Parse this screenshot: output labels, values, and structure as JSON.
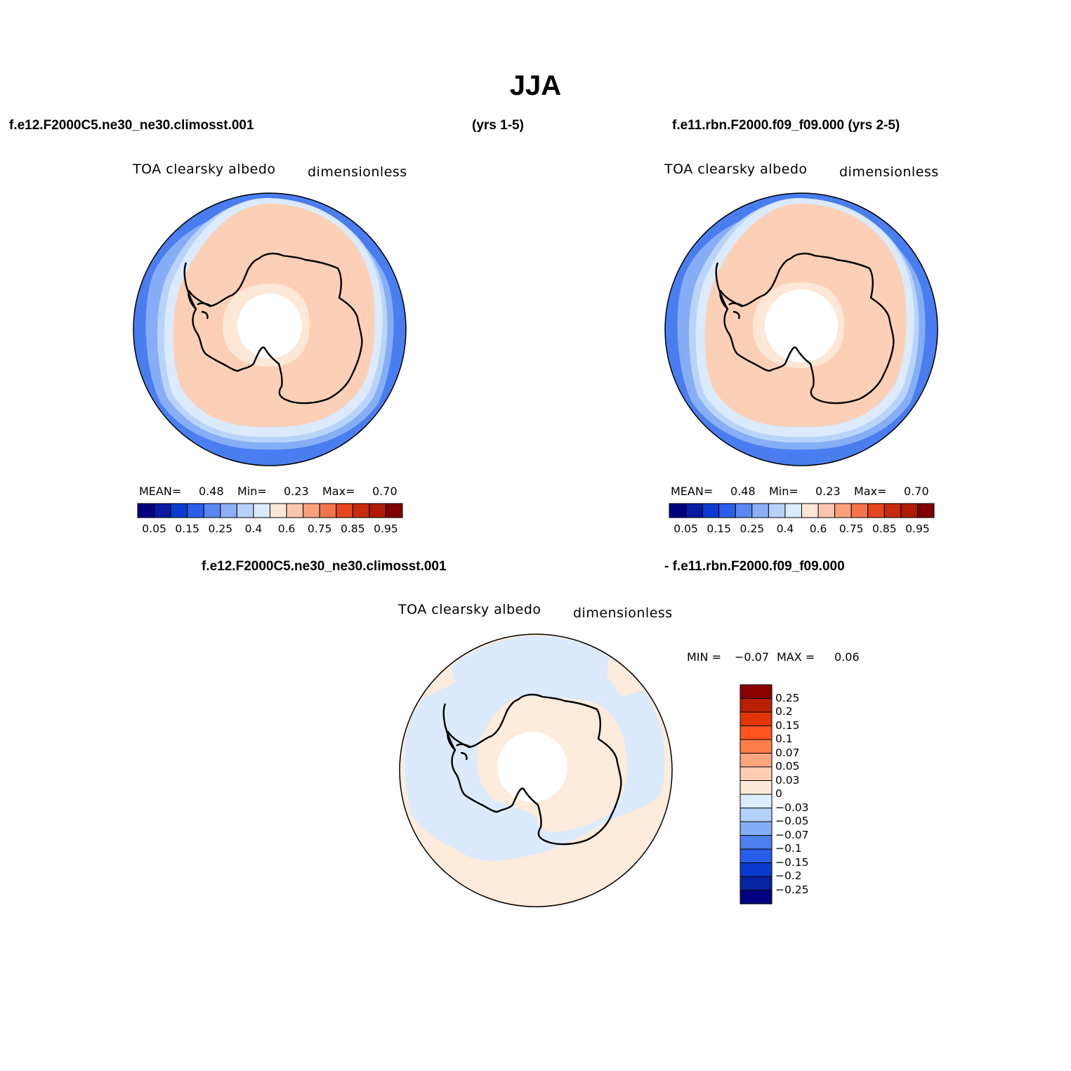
{
  "figure": {
    "title": "JJA",
    "panel_top_left": {
      "case_label": "f.e12.F2000C5.ne30_ne30.climosst.001",
      "years_label": "(yrs 1-5)",
      "variable": "TOA clearsky albedo",
      "units": "dimensionless",
      "mean_label": "MEAN=",
      "mean_value": "0.48",
      "min_label": "Min=",
      "min_value": "0.23",
      "max_label": "Max=",
      "max_value": "0.70"
    },
    "panel_top_right": {
      "case_label": "f.e11.rbn.F2000.f09_f09.000 (yrs 2-5)",
      "variable": "TOA clearsky albedo",
      "units": "dimensionless",
      "mean_label": "MEAN=",
      "mean_value": "0.48",
      "min_label": "Min=",
      "min_value": "0.23",
      "max_label": "Max=",
      "max_value": "0.70"
    },
    "panel_bottom": {
      "case_label_left": "f.e12.F2000C5.ne30_ne30.climosst.001",
      "case_label_right": "- f.e11.rbn.F2000.f09_f09.000",
      "variable": "TOA clearsky albedo",
      "units": "dimensionless",
      "min_label": "MIN =",
      "min_value": "−0.07",
      "max_label": "MAX =",
      "max_value": "0.06"
    },
    "colorbar_horizontal": {
      "tick_labels": [
        "0.05",
        "0.15",
        "0.25",
        "0.4",
        "0.6",
        "0.75",
        "0.85",
        "0.95"
      ],
      "colors": [
        "#00007f",
        "#0a1aa3",
        "#0b3ad0",
        "#2a5de8",
        "#5a88f2",
        "#8caff6",
        "#b8d1f9",
        "#d9ebfc",
        "#fde8d8",
        "#fcc6ae",
        "#f9a07c",
        "#f4744d",
        "#e6461d",
        "#c72a0c",
        "#b01a06",
        "#7f0000"
      ]
    },
    "colorbar_vertical": {
      "tick_labels": [
        "0.25",
        "0.2",
        "0.15",
        "0.1",
        "0.07",
        "0.05",
        "0.03",
        "0",
        "−0.03",
        "−0.05",
        "−0.07",
        "−0.1",
        "−0.15",
        "−0.2",
        "−0.25"
      ],
      "colors": [
        "#8b0000",
        "#b82005",
        "#e23609",
        "#ff5320",
        "#ff7d4a",
        "#fca57e",
        "#fdcdb3",
        "#fde9d9",
        "#dcedfd",
        "#b4d1fb",
        "#86aef6",
        "#4f7ef0",
        "#2a5ee8",
        "#0b3ad0",
        "#08239f",
        "#00007f"
      ]
    },
    "map_colors": {
      "ocean_blue_outer": "#4a7ef0",
      "ocean_blue_mid": "#86aef6",
      "ocean_blue_light": "#b8d4fa",
      "ocean_pale_blue": "#dbeafc",
      "pale_peach": "#fde7d6",
      "peach": "#fcd0b6",
      "diff_blue": "#dbeafc",
      "diff_peach": "#fdebdc"
    }
  }
}
